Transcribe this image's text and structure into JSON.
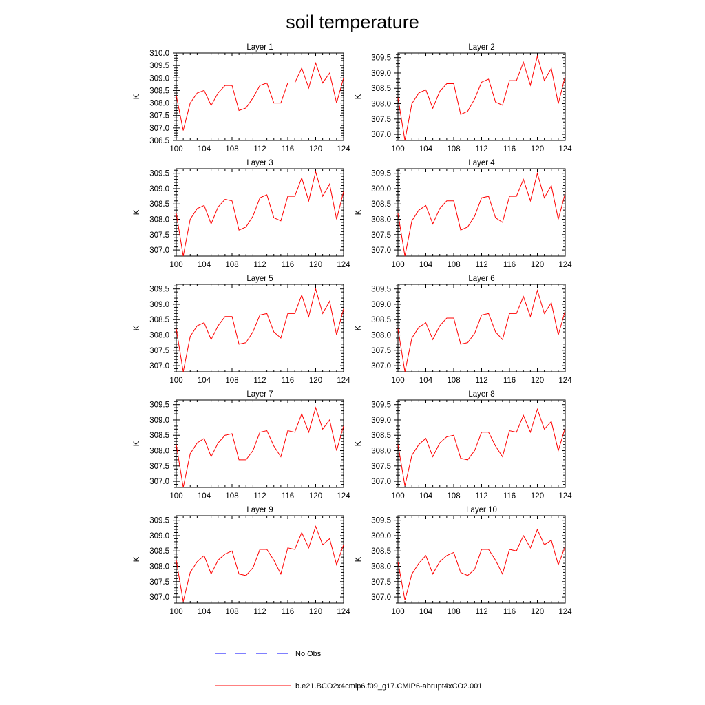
{
  "title": "soil temperature",
  "colors": {
    "model_line": "#ff0000",
    "obs_line": "#0000ff",
    "axis": "#000000"
  },
  "legend": [
    {
      "label": "No Obs",
      "style": "dashed",
      "color": "#0000ff"
    },
    {
      "label": "b.e21.BCO2x4cmip6.f09_g17.CMIP6-abrupt4xCO2.001",
      "style": "solid",
      "color": "#ff0000"
    }
  ],
  "chart_data": [
    {
      "type": "line",
      "title": "Layer 1",
      "xlabel": "",
      "ylabel": "K",
      "xlim": [
        100,
        124
      ],
      "ylim": [
        306.5,
        310.0
      ],
      "xticks": [
        "100",
        "104",
        "108",
        "112",
        "116",
        "120",
        "124"
      ],
      "yticks": [
        "306.5",
        "307.0",
        "307.5",
        "308.0",
        "308.5",
        "309.0",
        "309.5",
        "310.0"
      ],
      "series": [
        {
          "name": "b.e21.BCO2x4cmip6.f09_g17.CMIP6-abrupt4xCO2.001",
          "x": [
            100,
            101,
            102,
            103,
            104,
            105,
            106,
            107,
            108,
            109,
            110,
            111,
            112,
            113,
            114,
            115,
            116,
            117,
            118,
            119,
            120,
            121,
            122,
            123,
            124
          ],
          "values": [
            308.3,
            306.9,
            308.0,
            308.4,
            308.5,
            307.9,
            308.4,
            308.7,
            308.7,
            307.7,
            307.8,
            308.2,
            308.7,
            308.8,
            308.0,
            308.0,
            308.8,
            308.8,
            309.4,
            308.6,
            309.6,
            308.8,
            309.2,
            308.0,
            309.0
          ]
        }
      ]
    },
    {
      "type": "line",
      "title": "Layer 2",
      "xlabel": "",
      "ylabel": "K",
      "xlim": [
        100,
        124
      ],
      "ylim": [
        306.8,
        309.65
      ],
      "xticks": [
        "100",
        "104",
        "108",
        "112",
        "116",
        "120",
        "124"
      ],
      "yticks": [
        "307.0",
        "307.5",
        "308.0",
        "308.5",
        "309.0",
        "309.5"
      ],
      "series": [
        {
          "name": "b.e21.BCO2x4cmip6.f09_g17.CMIP6-abrupt4xCO2.001",
          "x": [
            100,
            101,
            102,
            103,
            104,
            105,
            106,
            107,
            108,
            109,
            110,
            111,
            112,
            113,
            114,
            115,
            116,
            117,
            118,
            119,
            120,
            121,
            122,
            123,
            124
          ],
          "values": [
            308.2,
            306.8,
            308.0,
            308.35,
            308.45,
            307.85,
            308.4,
            308.65,
            308.65,
            307.65,
            307.75,
            308.15,
            308.7,
            308.8,
            308.05,
            307.95,
            308.75,
            308.75,
            309.35,
            308.6,
            309.55,
            308.75,
            309.15,
            308.0,
            308.9
          ]
        }
      ]
    },
    {
      "type": "line",
      "title": "Layer 3",
      "xlabel": "",
      "ylabel": "K",
      "xlim": [
        100,
        124
      ],
      "ylim": [
        306.8,
        309.65
      ],
      "xticks": [
        "100",
        "104",
        "108",
        "112",
        "116",
        "120",
        "124"
      ],
      "yticks": [
        "307.0",
        "307.5",
        "308.0",
        "308.5",
        "309.0",
        "309.5"
      ],
      "series": [
        {
          "name": "b.e21.BCO2x4cmip6.f09_g17.CMIP6-abrupt4xCO2.001",
          "x": [
            100,
            101,
            102,
            103,
            104,
            105,
            106,
            107,
            108,
            109,
            110,
            111,
            112,
            113,
            114,
            115,
            116,
            117,
            118,
            119,
            120,
            121,
            122,
            123,
            124
          ],
          "values": [
            308.2,
            306.8,
            308.0,
            308.35,
            308.45,
            307.85,
            308.4,
            308.65,
            308.6,
            307.65,
            307.75,
            308.1,
            308.7,
            308.8,
            308.05,
            307.95,
            308.75,
            308.75,
            309.35,
            308.6,
            309.55,
            308.75,
            309.15,
            308.0,
            308.9
          ]
        }
      ]
    },
    {
      "type": "line",
      "title": "Layer 4",
      "xlabel": "",
      "ylabel": "K",
      "xlim": [
        100,
        124
      ],
      "ylim": [
        306.8,
        309.65
      ],
      "xticks": [
        "100",
        "104",
        "108",
        "112",
        "116",
        "120",
        "124"
      ],
      "yticks": [
        "307.0",
        "307.5",
        "308.0",
        "308.5",
        "309.0",
        "309.5"
      ],
      "series": [
        {
          "name": "b.e21.BCO2x4cmip6.f09_g17.CMIP6-abrupt4xCO2.001",
          "x": [
            100,
            101,
            102,
            103,
            104,
            105,
            106,
            107,
            108,
            109,
            110,
            111,
            112,
            113,
            114,
            115,
            116,
            117,
            118,
            119,
            120,
            121,
            122,
            123,
            124
          ],
          "values": [
            308.2,
            306.8,
            307.95,
            308.3,
            308.45,
            307.85,
            308.35,
            308.6,
            308.6,
            307.65,
            307.75,
            308.1,
            308.7,
            308.75,
            308.05,
            307.9,
            308.75,
            308.75,
            309.3,
            308.6,
            309.5,
            308.7,
            309.1,
            308.0,
            308.85
          ]
        }
      ]
    },
    {
      "type": "line",
      "title": "Layer 5",
      "xlabel": "",
      "ylabel": "K",
      "xlim": [
        100,
        124
      ],
      "ylim": [
        306.8,
        309.65
      ],
      "xticks": [
        "100",
        "104",
        "108",
        "112",
        "116",
        "120",
        "124"
      ],
      "yticks": [
        "307.0",
        "307.5",
        "308.0",
        "308.5",
        "309.0",
        "309.5"
      ],
      "series": [
        {
          "name": "b.e21.BCO2x4cmip6.f09_g17.CMIP6-abrupt4xCO2.001",
          "x": [
            100,
            101,
            102,
            103,
            104,
            105,
            106,
            107,
            108,
            109,
            110,
            111,
            112,
            113,
            114,
            115,
            116,
            117,
            118,
            119,
            120,
            121,
            122,
            123,
            124
          ],
          "values": [
            308.2,
            306.8,
            307.95,
            308.3,
            308.4,
            307.85,
            308.3,
            308.6,
            308.6,
            307.7,
            307.75,
            308.1,
            308.65,
            308.7,
            308.1,
            307.9,
            308.7,
            308.7,
            309.3,
            308.6,
            309.5,
            308.7,
            309.1,
            308.0,
            308.85
          ]
        }
      ]
    },
    {
      "type": "line",
      "title": "Layer 6",
      "xlabel": "",
      "ylabel": "K",
      "xlim": [
        100,
        124
      ],
      "ylim": [
        306.8,
        309.65
      ],
      "xticks": [
        "100",
        "104",
        "108",
        "112",
        "116",
        "120",
        "124"
      ],
      "yticks": [
        "307.0",
        "307.5",
        "308.0",
        "308.5",
        "309.0",
        "309.5"
      ],
      "series": [
        {
          "name": "b.e21.BCO2x4cmip6.f09_g17.CMIP6-abrupt4xCO2.001",
          "x": [
            100,
            101,
            102,
            103,
            104,
            105,
            106,
            107,
            108,
            109,
            110,
            111,
            112,
            113,
            114,
            115,
            116,
            117,
            118,
            119,
            120,
            121,
            122,
            123,
            124
          ],
          "values": [
            308.2,
            306.8,
            307.9,
            308.25,
            308.4,
            307.85,
            308.3,
            308.55,
            308.55,
            307.7,
            307.75,
            308.05,
            308.65,
            308.7,
            308.1,
            307.85,
            308.7,
            308.7,
            309.25,
            308.6,
            309.45,
            308.7,
            309.05,
            308.0,
            308.8
          ]
        }
      ]
    },
    {
      "type": "line",
      "title": "Layer 7",
      "xlabel": "",
      "ylabel": "K",
      "xlim": [
        100,
        124
      ],
      "ylim": [
        306.8,
        309.65
      ],
      "xticks": [
        "100",
        "104",
        "108",
        "112",
        "116",
        "120",
        "124"
      ],
      "yticks": [
        "307.0",
        "307.5",
        "308.0",
        "308.5",
        "309.0",
        "309.5"
      ],
      "series": [
        {
          "name": "b.e21.BCO2x4cmip6.f09_g17.CMIP6-abrupt4xCO2.001",
          "x": [
            100,
            101,
            102,
            103,
            104,
            105,
            106,
            107,
            108,
            109,
            110,
            111,
            112,
            113,
            114,
            115,
            116,
            117,
            118,
            119,
            120,
            121,
            122,
            123,
            124
          ],
          "values": [
            308.2,
            306.8,
            307.9,
            308.25,
            308.4,
            307.8,
            308.25,
            308.5,
            308.55,
            307.7,
            307.7,
            308.0,
            308.6,
            308.65,
            308.15,
            307.8,
            308.65,
            308.6,
            309.2,
            308.6,
            309.4,
            308.7,
            309.0,
            308.0,
            308.8
          ]
        }
      ]
    },
    {
      "type": "line",
      "title": "Layer 8",
      "xlabel": "",
      "ylabel": "K",
      "xlim": [
        100,
        124
      ],
      "ylim": [
        306.8,
        309.65
      ],
      "xticks": [
        "100",
        "104",
        "108",
        "112",
        "116",
        "120",
        "124"
      ],
      "yticks": [
        "307.0",
        "307.5",
        "308.0",
        "308.5",
        "309.0",
        "309.5"
      ],
      "series": [
        {
          "name": "b.e21.BCO2x4cmip6.f09_g17.CMIP6-abrupt4xCO2.001",
          "x": [
            100,
            101,
            102,
            103,
            104,
            105,
            106,
            107,
            108,
            109,
            110,
            111,
            112,
            113,
            114,
            115,
            116,
            117,
            118,
            119,
            120,
            121,
            122,
            123,
            124
          ],
          "values": [
            308.2,
            306.85,
            307.85,
            308.2,
            308.4,
            307.8,
            308.25,
            308.45,
            308.5,
            307.75,
            307.7,
            308.0,
            308.6,
            308.6,
            308.15,
            307.8,
            308.65,
            308.6,
            309.15,
            308.6,
            309.35,
            308.7,
            308.95,
            308.0,
            308.75
          ]
        }
      ]
    },
    {
      "type": "line",
      "title": "Layer 9",
      "xlabel": "",
      "ylabel": "K",
      "xlim": [
        100,
        124
      ],
      "ylim": [
        306.8,
        309.65
      ],
      "xticks": [
        "100",
        "104",
        "108",
        "112",
        "116",
        "120",
        "124"
      ],
      "yticks": [
        "307.0",
        "307.5",
        "308.0",
        "308.5",
        "309.0",
        "309.5"
      ],
      "series": [
        {
          "name": "b.e21.BCO2x4cmip6.f09_g17.CMIP6-abrupt4xCO2.001",
          "x": [
            100,
            101,
            102,
            103,
            104,
            105,
            106,
            107,
            108,
            109,
            110,
            111,
            112,
            113,
            114,
            115,
            116,
            117,
            118,
            119,
            120,
            121,
            122,
            123,
            124
          ],
          "values": [
            308.2,
            306.85,
            307.8,
            308.15,
            308.35,
            307.75,
            308.2,
            308.4,
            308.5,
            307.75,
            307.7,
            307.95,
            308.55,
            308.55,
            308.2,
            307.75,
            308.6,
            308.55,
            309.1,
            308.6,
            309.3,
            308.7,
            308.9,
            308.05,
            308.7
          ]
        }
      ]
    },
    {
      "type": "line",
      "title": "Layer 10",
      "xlabel": "",
      "ylabel": "K",
      "xlim": [
        100,
        124
      ],
      "ylim": [
        306.8,
        309.65
      ],
      "xticks": [
        "100",
        "104",
        "108",
        "112",
        "116",
        "120",
        "124"
      ],
      "yticks": [
        "307.0",
        "307.5",
        "308.0",
        "308.5",
        "309.0",
        "309.5"
      ],
      "series": [
        {
          "name": "b.e21.BCO2x4cmip6.f09_g17.CMIP6-abrupt4xCO2.001",
          "x": [
            100,
            101,
            102,
            103,
            104,
            105,
            106,
            107,
            108,
            109,
            110,
            111,
            112,
            113,
            114,
            115,
            116,
            117,
            118,
            119,
            120,
            121,
            122,
            123,
            124
          ],
          "values": [
            308.15,
            306.9,
            307.75,
            308.1,
            308.35,
            307.75,
            308.15,
            308.35,
            308.45,
            307.8,
            307.7,
            307.9,
            308.55,
            308.55,
            308.2,
            307.75,
            308.55,
            308.5,
            309.0,
            308.6,
            309.2,
            308.7,
            308.85,
            308.05,
            308.65
          ]
        }
      ]
    }
  ]
}
